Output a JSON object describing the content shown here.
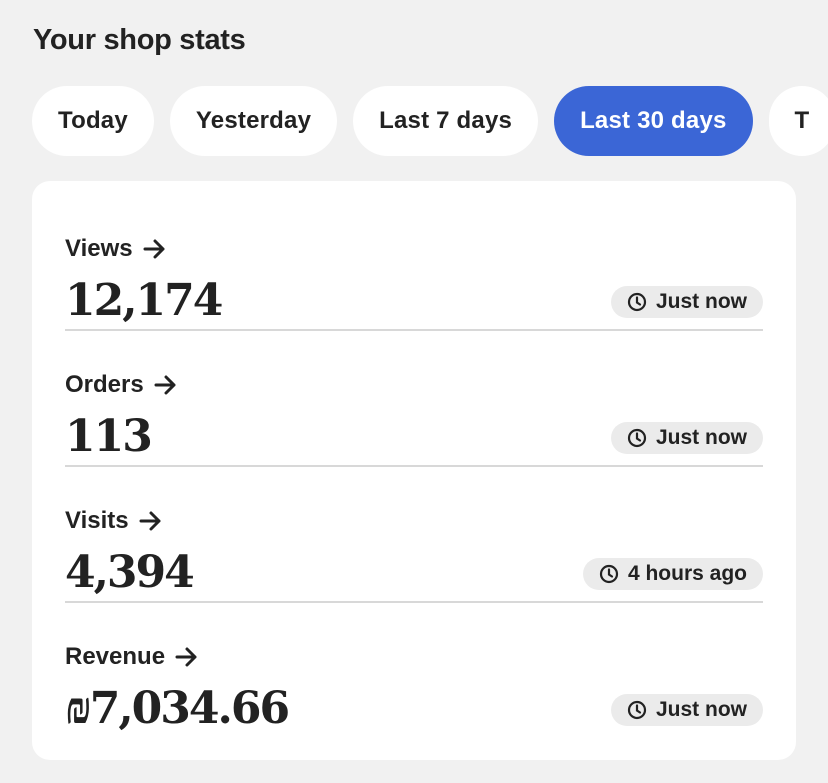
{
  "header": {
    "title": "Your shop stats"
  },
  "tabs": [
    {
      "label": "Today"
    },
    {
      "label": "Yesterday"
    },
    {
      "label": "Last 7 days"
    },
    {
      "label": "Last 30 days",
      "active": true
    },
    {
      "label": "T"
    }
  ],
  "colors": {
    "accent": "#3b66d6",
    "background": "#f1f1f1",
    "badge": "#ebebeb"
  },
  "stats": [
    {
      "label": "Views",
      "value": "12,174",
      "updated": "Just now",
      "icon": "clock-icon"
    },
    {
      "label": "Orders",
      "value": "113",
      "updated": "Just now",
      "icon": "clock-icon"
    },
    {
      "label": "Visits",
      "value": "4,394",
      "updated": "4 hours ago",
      "icon": "clock-icon"
    },
    {
      "label": "Revenue",
      "value": "₪7,034.66",
      "updated": "Just now",
      "icon": "clock-icon"
    }
  ]
}
